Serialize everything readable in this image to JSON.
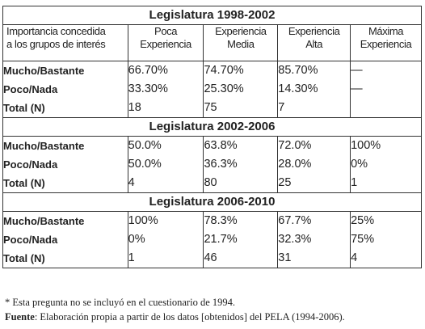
{
  "header": {
    "col0": [
      "Importancia concedida",
      "a los grupos de interés"
    ],
    "col1": [
      "Poca",
      "Experiencia"
    ],
    "col2": [
      "Experiencia",
      "Media"
    ],
    "col3": [
      "Experiencia",
      "Alta"
    ],
    "col4": [
      "Máxima",
      "Experiencia"
    ]
  },
  "sections": [
    {
      "title": "Legislatura 1998-2002",
      "labels": [
        "Mucho/Bastante",
        "Poco/Nada",
        "Total (N)"
      ],
      "cols": [
        [
          "66.70%",
          "33.30%",
          "18"
        ],
        [
          "74.70%",
          "25.30%",
          "75"
        ],
        [
          "85.70%",
          "14.30%",
          "7"
        ],
        [
          "—",
          "—",
          ""
        ]
      ]
    },
    {
      "title": "Legislatura 2002-2006",
      "labels": [
        "Mucho/Bastante",
        "Poco/Nada",
        "Total (N)"
      ],
      "cols": [
        [
          "50.0%",
          "50.0%",
          "4"
        ],
        [
          "63.8%",
          "36.3%",
          "80"
        ],
        [
          "72.0%",
          "28.0%",
          "25"
        ],
        [
          "100%",
          "0%",
          "1"
        ]
      ]
    },
    {
      "title": "Legislatura 2006-2010",
      "labels": [
        "Mucho/Bastante",
        "Poco/Nada",
        "Total (N)"
      ],
      "cols": [
        [
          "100%",
          "0%",
          "1"
        ],
        [
          "78.3%",
          "21.7%",
          "46"
        ],
        [
          "67.7%",
          "32.3%",
          "31"
        ],
        [
          "25%",
          "75%",
          "4"
        ]
      ]
    }
  ],
  "notes": {
    "footnote": "* Esta pregunta no se incluyó en el cuestionario de 1994.",
    "source_label": "Fuente",
    "source_text": ": Elaboración propia a partir de los datos [obtenidos] del PELA (1994-2006)."
  }
}
